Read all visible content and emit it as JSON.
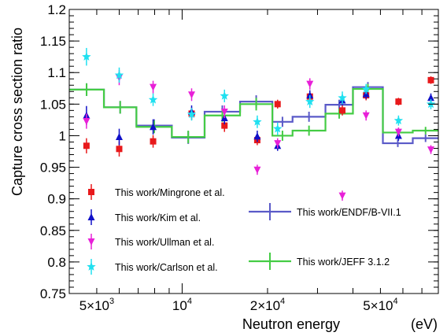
{
  "chart_data": {
    "type": "scatter",
    "xlabel": "Neutron energy",
    "xunit": "(eV)",
    "ylabel": "Capture cross section ratio",
    "x_scale": "log",
    "xlim": [
      4000,
      80000
    ],
    "ylim": [
      0.75,
      1.2
    ],
    "y_ticks": [
      {
        "v": 0.75,
        "label": "0.75"
      },
      {
        "v": 0.8,
        "label": "0.8"
      },
      {
        "v": 0.85,
        "label": "0.85"
      },
      {
        "v": 0.9,
        "label": "0.9"
      },
      {
        "v": 0.95,
        "label": "0.95"
      },
      {
        "v": 1.0,
        "label": "1"
      },
      {
        "v": 1.05,
        "label": "1.05"
      },
      {
        "v": 1.1,
        "label": "1.1"
      },
      {
        "v": 1.15,
        "label": "1.15"
      },
      {
        "v": 1.2,
        "label": "1.2"
      }
    ],
    "x_ticks": [
      {
        "v": 5000,
        "label": "5×10",
        "exp": "3"
      },
      {
        "v": 10000,
        "label": "10",
        "exp": "4"
      },
      {
        "v": 20000,
        "label": "2×10",
        "exp": "4"
      },
      {
        "v": 50000,
        "label": "5×10",
        "exp": "4"
      }
    ],
    "grid": false,
    "legend_position": "lower-left and lower-center",
    "series": [
      {
        "name": "This work/Mingrone et al.",
        "kind": "points",
        "marker": "square",
        "color": "#e8191b",
        "points": [
          {
            "x": 4600,
            "y": 0.984,
            "err": 0.012
          },
          {
            "x": 6000,
            "y": 0.979,
            "err": 0.012
          },
          {
            "x": 7900,
            "y": 0.991,
            "err": 0.01
          },
          {
            "x": 10800,
            "y": 1.035,
            "err": 0.01
          },
          {
            "x": 14100,
            "y": 1.016,
            "err": 0.01
          },
          {
            "x": 18400,
            "y": 0.993,
            "err": 0.008
          },
          {
            "x": 21700,
            "y": 1.05,
            "err": 0.007
          },
          {
            "x": 28200,
            "y": 1.062,
            "err": 0.008
          },
          {
            "x": 36700,
            "y": 1.04,
            "err": 0.008
          },
          {
            "x": 44500,
            "y": 1.064,
            "err": 0.008
          },
          {
            "x": 57900,
            "y": 1.054,
            "err": 0.006
          },
          {
            "x": 75300,
            "y": 1.088,
            "err": 0.006
          }
        ]
      },
      {
        "name": "This work/Kim et al.",
        "kind": "points",
        "marker": "triangle",
        "color": "#1010c8",
        "points": [
          {
            "x": 4600,
            "y": 1.032,
            "err": 0.015
          },
          {
            "x": 6000,
            "y": 0.998,
            "err": 0.013
          },
          {
            "x": 7900,
            "y": 1.014,
            "err": 0.012
          },
          {
            "x": 10800,
            "y": 1.038,
            "err": 0.01
          },
          {
            "x": 14100,
            "y": 1.028,
            "err": 0.01
          },
          {
            "x": 18400,
            "y": 0.999,
            "err": 0.009
          },
          {
            "x": 21700,
            "y": 0.984,
            "err": 0.008
          },
          {
            "x": 28200,
            "y": 1.064,
            "err": 0.008
          },
          {
            "x": 36700,
            "y": 1.056,
            "err": 0.008
          },
          {
            "x": 44500,
            "y": 1.066,
            "err": 0.008
          },
          {
            "x": 57900,
            "y": 1.0,
            "err": 0.008
          },
          {
            "x": 75300,
            "y": 1.06,
            "err": 0.007
          }
        ]
      },
      {
        "name": "This work/Ullman et al.",
        "kind": "points",
        "marker": "triangle-down",
        "color": "#e820d8",
        "points": [
          {
            "x": 4600,
            "y": 1.023,
            "err": 0.012
          },
          {
            "x": 6000,
            "y": 1.092,
            "err": 0.012
          },
          {
            "x": 7900,
            "y": 1.077,
            "err": 0.01
          },
          {
            "x": 10800,
            "y": 1.065,
            "err": 0.01
          },
          {
            "x": 14100,
            "y": 1.038,
            "err": 0.01
          },
          {
            "x": 18400,
            "y": 0.946,
            "err": 0.008
          },
          {
            "x": 21700,
            "y": 0.988,
            "err": 0.008
          },
          {
            "x": 28200,
            "y": 1.082,
            "err": 0.009
          },
          {
            "x": 36700,
            "y": 0.905,
            "err": 0.008
          },
          {
            "x": 44500,
            "y": 1.032,
            "err": 0.008
          },
          {
            "x": 57900,
            "y": 1.006,
            "err": 0.007
          },
          {
            "x": 75300,
            "y": 0.978,
            "err": 0.007
          }
        ]
      },
      {
        "name": "This work/Carlson et al.",
        "kind": "points",
        "marker": "star",
        "color": "#20e0f0",
        "points": [
          {
            "x": 4600,
            "y": 1.125,
            "err": 0.014
          },
          {
            "x": 6000,
            "y": 1.096,
            "err": 0.012
          },
          {
            "x": 7900,
            "y": 1.057,
            "err": 0.01
          },
          {
            "x": 10800,
            "y": 1.034,
            "err": 0.01
          },
          {
            "x": 14100,
            "y": 1.063,
            "err": 0.01
          },
          {
            "x": 18400,
            "y": 1.022,
            "err": 0.01
          },
          {
            "x": 21700,
            "y": 1.011,
            "err": 0.01
          },
          {
            "x": 28200,
            "y": 1.054,
            "err": 0.01
          },
          {
            "x": 36700,
            "y": 1.06,
            "err": 0.01
          },
          {
            "x": 44500,
            "y": 1.074,
            "err": 0.008
          },
          {
            "x": 57900,
            "y": 1.024,
            "err": 0.008
          },
          {
            "x": 75300,
            "y": 1.05,
            "err": 0.008
          }
        ]
      },
      {
        "name": "This work/ENDF/B-VII.1",
        "kind": "step",
        "color": "#5a5ac8",
        "bins": [
          {
            "x0": 4000,
            "x1": 5300,
            "y": 1.073,
            "err": 0.01
          },
          {
            "x0": 5300,
            "x1": 6900,
            "y": 1.045,
            "err": 0.01
          },
          {
            "x0": 6900,
            "x1": 9200,
            "y": 1.016,
            "err": 0.01
          },
          {
            "x0": 9200,
            "x1": 12000,
            "y": 0.997,
            "err": 0.01
          },
          {
            "x0": 12000,
            "x1": 16000,
            "y": 1.038,
            "err": 0.01
          },
          {
            "x0": 16000,
            "x1": 20800,
            "y": 1.054,
            "err": 0.01
          },
          {
            "x0": 20800,
            "x1": 24500,
            "y": 1.022,
            "err": 0.008
          },
          {
            "x0": 24500,
            "x1": 32000,
            "y": 1.03,
            "err": 0.008
          },
          {
            "x0": 32000,
            "x1": 40000,
            "y": 1.049,
            "err": 0.008
          },
          {
            "x0": 40000,
            "x1": 51000,
            "y": 1.077,
            "err": 0.008
          },
          {
            "x0": 51000,
            "x1": 65000,
            "y": 0.988,
            "err": 0.006
          },
          {
            "x0": 65000,
            "x1": 80000,
            "y": 0.996,
            "err": 0.006
          }
        ]
      },
      {
        "name": "This work/JEFF 3.1.2",
        "kind": "step",
        "color": "#44cc44",
        "bins": [
          {
            "x0": 4000,
            "x1": 5300,
            "y": 1.073,
            "err": 0.01
          },
          {
            "x0": 5300,
            "x1": 6900,
            "y": 1.045,
            "err": 0.01
          },
          {
            "x0": 6900,
            "x1": 9200,
            "y": 1.014,
            "err": 0.01
          },
          {
            "x0": 9200,
            "x1": 12000,
            "y": 0.998,
            "err": 0.01
          },
          {
            "x0": 12000,
            "x1": 16000,
            "y": 1.032,
            "err": 0.01
          },
          {
            "x0": 16000,
            "x1": 20800,
            "y": 1.05,
            "err": 0.01
          },
          {
            "x0": 20800,
            "x1": 24500,
            "y": 1.0,
            "err": 0.008
          },
          {
            "x0": 24500,
            "x1": 32000,
            "y": 1.008,
            "err": 0.008
          },
          {
            "x0": 32000,
            "x1": 40000,
            "y": 1.035,
            "err": 0.008
          },
          {
            "x0": 40000,
            "x1": 51000,
            "y": 1.074,
            "err": 0.008
          },
          {
            "x0": 51000,
            "x1": 65000,
            "y": 1.005,
            "err": 0.006
          },
          {
            "x0": 65000,
            "x1": 80000,
            "y": 1.008,
            "err": 0.006
          }
        ]
      }
    ]
  }
}
